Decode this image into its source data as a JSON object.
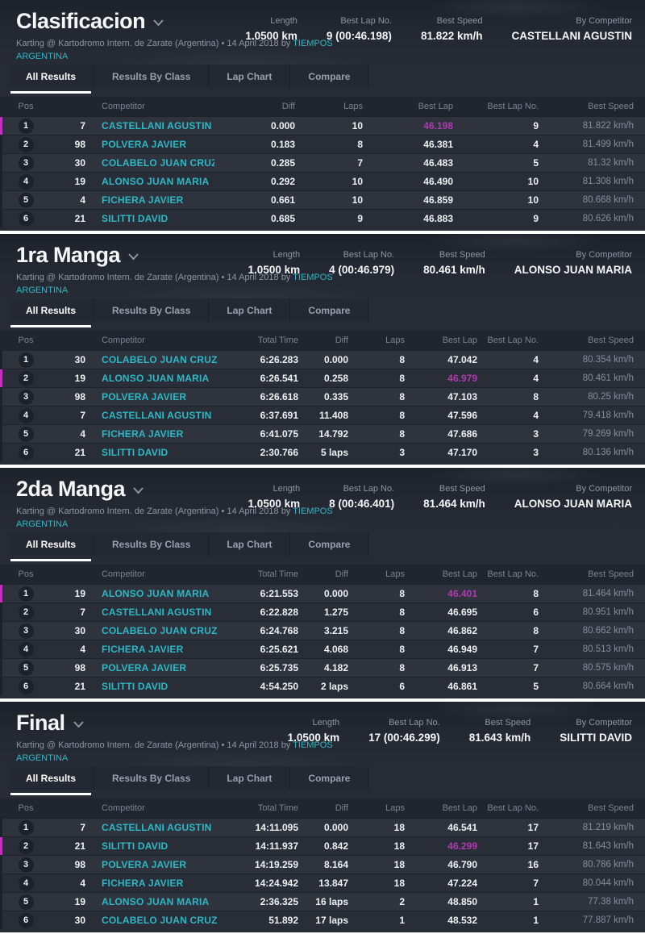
{
  "page": {
    "subtitle_text": "Karting @ Kartodromo Intern. de Zarate (Argentina) • 14 April 2018 by",
    "subtitle_link": "TIEMPOS ARGENTINA",
    "tabs": [
      "All Results",
      "Results By Class",
      "Lap Chart",
      "Compare"
    ],
    "active_tab": "All Results",
    "stat_labels": [
      "Length",
      "Best Lap No.",
      "Best Speed",
      "By Competitor"
    ],
    "colors": {
      "card_bg": "#262b35",
      "accent_cyan": "#2eb8c5",
      "best_lap_text": "#b03ab0",
      "best_row_marker": "#c52fc0"
    }
  },
  "sections": [
    {
      "title": "Clasificacion",
      "stats": [
        "1.0500 km",
        "9 (00:46.198)",
        "81.822 km/h",
        "CASTELLANI AGUSTIN"
      ],
      "columns": [
        "Pos",
        "Competitor",
        "Diff",
        "Laps",
        "Best Lap",
        "Best Lap No.",
        "Best Speed"
      ],
      "rows": [
        {
          "pos": "1",
          "kart": "7",
          "competitor": "CASTELLANI AGUSTIN",
          "cells": [
            "0.000",
            "10",
            "46.198",
            "9",
            "81.822 km/h"
          ],
          "best": true
        },
        {
          "pos": "2",
          "kart": "98",
          "competitor": "POLVERA JAVIER",
          "cells": [
            "0.183",
            "8",
            "46.381",
            "4",
            "81.499 km/h"
          ],
          "best": false
        },
        {
          "pos": "3",
          "kart": "30",
          "competitor": "COLABELO JUAN CRUZ",
          "cells": [
            "0.285",
            "7",
            "46.483",
            "5",
            "81.32 km/h"
          ],
          "best": false
        },
        {
          "pos": "4",
          "kart": "19",
          "competitor": "ALONSO JUAN MARIA",
          "cells": [
            "0.292",
            "10",
            "46.490",
            "10",
            "81.308 km/h"
          ],
          "best": false
        },
        {
          "pos": "5",
          "kart": "4",
          "competitor": "FICHERA JAVIER",
          "cells": [
            "0.661",
            "10",
            "46.859",
            "10",
            "80.668 km/h"
          ],
          "best": false
        },
        {
          "pos": "6",
          "kart": "21",
          "competitor": "SILITTI DAVID",
          "cells": [
            "0.685",
            "9",
            "46.883",
            "9",
            "80.626 km/h"
          ],
          "best": false
        }
      ]
    },
    {
      "title": "1ra Manga",
      "stats": [
        "1.0500 km",
        "4 (00:46.979)",
        "80.461 km/h",
        "ALONSO JUAN MARIA"
      ],
      "columns": [
        "Pos",
        "Competitor",
        "Total Time",
        "Diff",
        "Laps",
        "Best Lap",
        "Best Lap No.",
        "Best Speed"
      ],
      "rows": [
        {
          "pos": "1",
          "kart": "30",
          "competitor": "COLABELO JUAN CRUZ",
          "cells": [
            "6:26.283",
            "0.000",
            "8",
            "47.042",
            "4",
            "80.354 km/h"
          ],
          "best": false
        },
        {
          "pos": "2",
          "kart": "19",
          "competitor": "ALONSO JUAN MARIA",
          "cells": [
            "6:26.541",
            "0.258",
            "8",
            "46.979",
            "4",
            "80.461 km/h"
          ],
          "best": true
        },
        {
          "pos": "3",
          "kart": "98",
          "competitor": "POLVERA JAVIER",
          "cells": [
            "6:26.618",
            "0.335",
            "8",
            "47.103",
            "8",
            "80.25 km/h"
          ],
          "best": false
        },
        {
          "pos": "4",
          "kart": "7",
          "competitor": "CASTELLANI AGUSTIN",
          "cells": [
            "6:37.691",
            "11.408",
            "8",
            "47.596",
            "4",
            "79.418 km/h"
          ],
          "best": false
        },
        {
          "pos": "5",
          "kart": "4",
          "competitor": "FICHERA JAVIER",
          "cells": [
            "6:41.075",
            "14.792",
            "8",
            "47.686",
            "3",
            "79.269 km/h"
          ],
          "best": false
        },
        {
          "pos": "6",
          "kart": "21",
          "competitor": "SILITTI DAVID",
          "cells": [
            "2:30.766",
            "5 laps",
            "3",
            "47.170",
            "3",
            "80.136 km/h"
          ],
          "best": false
        }
      ]
    },
    {
      "title": "2da Manga",
      "stats": [
        "1.0500 km",
        "8 (00:46.401)",
        "81.464 km/h",
        "ALONSO JUAN MARIA"
      ],
      "columns": [
        "Pos",
        "Competitor",
        "Total Time",
        "Diff",
        "Laps",
        "Best Lap",
        "Best Lap No.",
        "Best Speed"
      ],
      "rows": [
        {
          "pos": "1",
          "kart": "19",
          "competitor": "ALONSO JUAN MARIA",
          "cells": [
            "6:21.553",
            "0.000",
            "8",
            "46.401",
            "8",
            "81.464 km/h"
          ],
          "best": true
        },
        {
          "pos": "2",
          "kart": "7",
          "competitor": "CASTELLANI AGUSTIN",
          "cells": [
            "6:22.828",
            "1.275",
            "8",
            "46.695",
            "6",
            "80.951 km/h"
          ],
          "best": false
        },
        {
          "pos": "3",
          "kart": "30",
          "competitor": "COLABELO JUAN CRUZ",
          "cells": [
            "6:24.768",
            "3.215",
            "8",
            "46.862",
            "8",
            "80.662 km/h"
          ],
          "best": false
        },
        {
          "pos": "4",
          "kart": "4",
          "competitor": "FICHERA JAVIER",
          "cells": [
            "6:25.621",
            "4.068",
            "8",
            "46.949",
            "7",
            "80.513 km/h"
          ],
          "best": false
        },
        {
          "pos": "5",
          "kart": "98",
          "competitor": "POLVERA JAVIER",
          "cells": [
            "6:25.735",
            "4.182",
            "8",
            "46.913",
            "7",
            "80.575 km/h"
          ],
          "best": false
        },
        {
          "pos": "6",
          "kart": "21",
          "competitor": "SILITTI DAVID",
          "cells": [
            "4:54.250",
            "2 laps",
            "6",
            "46.861",
            "5",
            "80.664 km/h"
          ],
          "best": false
        }
      ]
    },
    {
      "title": "Final",
      "stats": [
        "1.0500 km",
        "17 (00:46.299)",
        "81.643 km/h",
        "SILITTI DAVID"
      ],
      "columns": [
        "Pos",
        "Competitor",
        "Total Time",
        "Diff",
        "Laps",
        "Best Lap",
        "Best Lap No.",
        "Best Speed"
      ],
      "rows": [
        {
          "pos": "1",
          "kart": "7",
          "competitor": "CASTELLANI AGUSTIN",
          "cells": [
            "14:11.095",
            "0.000",
            "18",
            "46.541",
            "17",
            "81.219 km/h"
          ],
          "best": false
        },
        {
          "pos": "2",
          "kart": "21",
          "competitor": "SILITTI DAVID",
          "cells": [
            "14:11.937",
            "0.842",
            "18",
            "46.299",
            "17",
            "81.643 km/h"
          ],
          "best": true
        },
        {
          "pos": "3",
          "kart": "98",
          "competitor": "POLVERA JAVIER",
          "cells": [
            "14:19.259",
            "8.164",
            "18",
            "46.790",
            "16",
            "80.786 km/h"
          ],
          "best": false
        },
        {
          "pos": "4",
          "kart": "4",
          "competitor": "FICHERA JAVIER",
          "cells": [
            "14:24.942",
            "13.847",
            "18",
            "47.224",
            "7",
            "80.044 km/h"
          ],
          "best": false
        },
        {
          "pos": "5",
          "kart": "19",
          "competitor": "ALONSO JUAN MARIA",
          "cells": [
            "2:36.325",
            "16 laps",
            "2",
            "48.850",
            "1",
            "77.38 km/h"
          ],
          "best": false
        },
        {
          "pos": "6",
          "kart": "30",
          "competitor": "COLABELO JUAN CRUZ",
          "cells": [
            "51.892",
            "17 laps",
            "1",
            "48.532",
            "1",
            "77.887 km/h"
          ],
          "best": false
        }
      ]
    }
  ]
}
